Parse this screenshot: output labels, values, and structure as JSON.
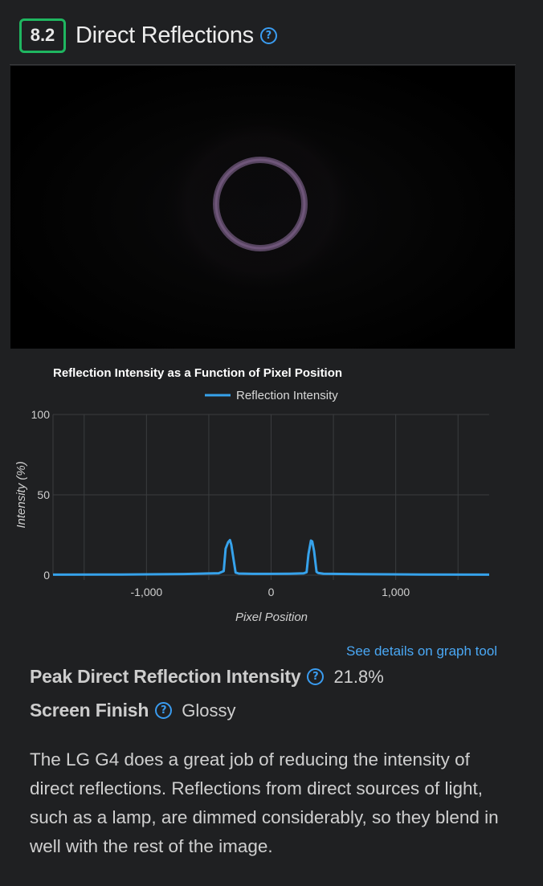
{
  "header": {
    "score": "8.2",
    "title": "Direct Reflections",
    "help_glyph": "?"
  },
  "photo": {
    "description_icon": "reflection-ring"
  },
  "chart_data": {
    "type": "line",
    "title": "Reflection Intensity as a Function of Pixel Position",
    "xlabel": "Pixel Position",
    "ylabel": "Intensity (%)",
    "xlim": [
      -1750,
      1750
    ],
    "ylim": [
      0,
      100
    ],
    "xticks": [
      -1000,
      0,
      1000
    ],
    "xtick_labels": [
      "-1,000",
      "0",
      "1,000"
    ],
    "yticks": [
      0,
      50,
      100
    ],
    "ytick_labels": [
      "0",
      "50",
      "100"
    ],
    "grid": true,
    "legend_position": "top-center",
    "series": [
      {
        "name": "Reflection Intensity",
        "color": "#36a2eb",
        "x": [
          -1750,
          -1200,
          -700,
          -420,
          -380,
          -365,
          -345,
          -330,
          -320,
          -300,
          -285,
          -260,
          -150,
          0,
          150,
          260,
          285,
          300,
          320,
          330,
          345,
          365,
          380,
          420,
          700,
          1200,
          1750
        ],
        "y": [
          0.3,
          0.4,
          0.7,
          1.2,
          2.5,
          16.5,
          20.5,
          21.8,
          19.0,
          9.0,
          1.6,
          1.0,
          0.8,
          0.8,
          0.9,
          1.1,
          1.8,
          13.0,
          21.5,
          21.0,
          15.0,
          2.0,
          1.3,
          0.9,
          0.6,
          0.4,
          0.3
        ]
      }
    ]
  },
  "graph_link": "See details on graph tool",
  "metrics": [
    {
      "label": "Peak Direct Reflection Intensity",
      "value": "21.8%"
    },
    {
      "label": "Screen Finish",
      "value": "Glossy"
    }
  ],
  "description": "The LG G4 does a great job of reducing the intensity of direct reflections. Reflections from direct sources of light, such as a lamp, are dimmed considerably, so they blend in well with the rest of the image."
}
